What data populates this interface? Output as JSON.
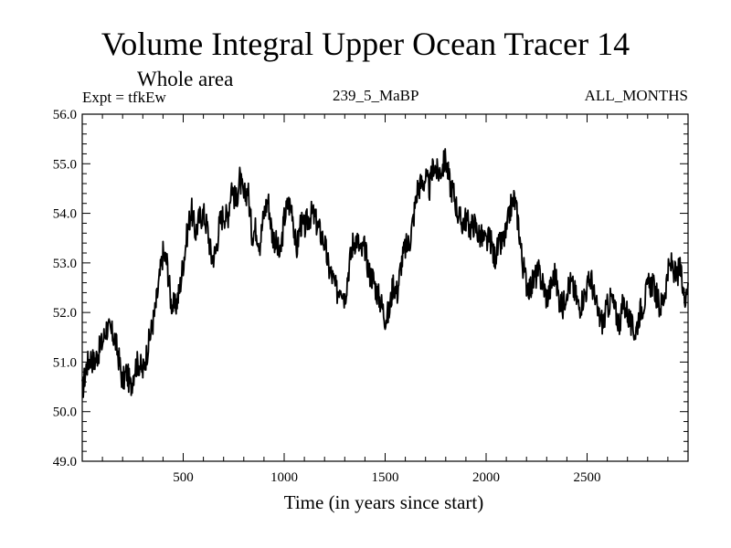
{
  "chart_data": {
    "type": "line",
    "title": "Volume Integral Upper Ocean Tracer 14",
    "subtitle": "Whole area",
    "experiment_label": "Expt = tfkEw",
    "run_label": "239_5_MaBP",
    "months_label": "ALL_MONTHS",
    "xlabel": "Time (in years since start)",
    "ylabel": "",
    "xlim": [
      0,
      3000
    ],
    "ylim": [
      49.0,
      56.0
    ],
    "x_ticks": [
      500,
      1000,
      1500,
      2000,
      2500
    ],
    "x_tick_labels": [
      "500",
      "1000",
      "1500",
      "2000",
      "2500"
    ],
    "y_ticks": [
      49.0,
      50.0,
      51.0,
      52.0,
      53.0,
      54.0,
      55.0,
      56.0
    ],
    "y_tick_labels": [
      "49.0",
      "50.0",
      "51.0",
      "52.0",
      "53.0",
      "54.0",
      "55.0",
      "56.0"
    ],
    "grid": false,
    "line_color": "#000000",
    "series": [
      {
        "x": [
          0,
          20,
          40,
          60,
          80,
          100,
          120,
          140,
          160,
          180,
          200,
          220,
          240,
          260,
          280,
          300,
          320,
          340,
          360,
          380,
          400,
          420,
          440,
          460,
          480,
          500,
          520,
          540,
          560,
          580,
          600,
          620,
          640,
          660,
          680,
          700,
          720,
          740,
          760,
          780,
          800,
          820,
          840,
          860,
          880,
          900,
          920,
          940,
          960,
          980,
          1000,
          1020,
          1040,
          1060,
          1080,
          1100,
          1120,
          1140,
          1160,
          1180,
          1200,
          1220,
          1240,
          1260,
          1280,
          1300,
          1320,
          1340,
          1360,
          1380,
          1400,
          1420,
          1440,
          1460,
          1480,
          1500,
          1520,
          1540,
          1560,
          1580,
          1600,
          1620,
          1640,
          1660,
          1680,
          1700,
          1720,
          1740,
          1760,
          1780,
          1800,
          1820,
          1840,
          1860,
          1880,
          1900,
          1920,
          1940,
          1960,
          1980,
          2000,
          2020,
          2040,
          2060,
          2080,
          2100,
          2120,
          2140,
          2160,
          2180,
          2200,
          2220,
          2240,
          2260,
          2280,
          2300,
          2320,
          2340,
          2360,
          2380,
          2400,
          2420,
          2440,
          2460,
          2480,
          2500,
          2520,
          2540,
          2560,
          2580,
          2600,
          2620,
          2640,
          2660,
          2680,
          2700,
          2720,
          2740,
          2760,
          2780,
          2800,
          2820,
          2840,
          2860,
          2880,
          2900,
          2920,
          2940,
          2960,
          2980,
          3000
        ],
        "y": [
          50.4,
          50.9,
          51.1,
          51.0,
          51.2,
          51.4,
          51.7,
          51.6,
          51.5,
          51.1,
          50.6,
          50.8,
          50.5,
          50.9,
          51.0,
          50.8,
          51.2,
          51.6,
          52.0,
          52.6,
          53.2,
          53.0,
          52.2,
          52.1,
          52.4,
          53.0,
          53.6,
          54.1,
          53.6,
          53.9,
          54.0,
          53.7,
          53.1,
          53.2,
          53.8,
          54.0,
          53.9,
          54.6,
          54.2,
          54.7,
          54.3,
          54.5,
          53.6,
          53.7,
          53.4,
          54.0,
          54.3,
          53.6,
          53.4,
          53.1,
          53.9,
          54.2,
          54.1,
          53.2,
          53.8,
          53.7,
          53.9,
          54.0,
          53.8,
          53.6,
          53.4,
          52.9,
          52.7,
          52.4,
          52.6,
          52.3,
          52.9,
          53.4,
          53.5,
          53.2,
          53.3,
          52.8,
          52.7,
          52.4,
          52.2,
          51.9,
          52.0,
          52.6,
          52.4,
          53.0,
          53.3,
          53.4,
          53.9,
          54.5,
          54.6,
          54.7,
          54.5,
          55.0,
          54.8,
          54.9,
          55.1,
          54.6,
          54.4,
          54.0,
          53.8,
          53.9,
          53.7,
          53.8,
          53.6,
          53.5,
          53.4,
          53.5,
          53.1,
          53.3,
          53.4,
          53.6,
          54.1,
          54.3,
          53.8,
          53.0,
          52.6,
          52.5,
          52.7,
          52.8,
          52.6,
          52.3,
          52.5,
          52.8,
          52.3,
          52.1,
          52.5,
          52.6,
          52.4,
          52.1,
          52.3,
          52.5,
          52.7,
          52.2,
          51.9,
          51.8,
          52.1,
          52.3,
          52.0,
          51.8,
          52.2,
          52.0,
          51.7,
          51.6,
          52.0,
          52.2,
          52.5,
          52.6,
          52.4,
          52.1,
          52.3,
          52.8,
          53.0,
          52.7,
          52.9,
          52.3,
          52.6
        ]
      }
    ]
  }
}
